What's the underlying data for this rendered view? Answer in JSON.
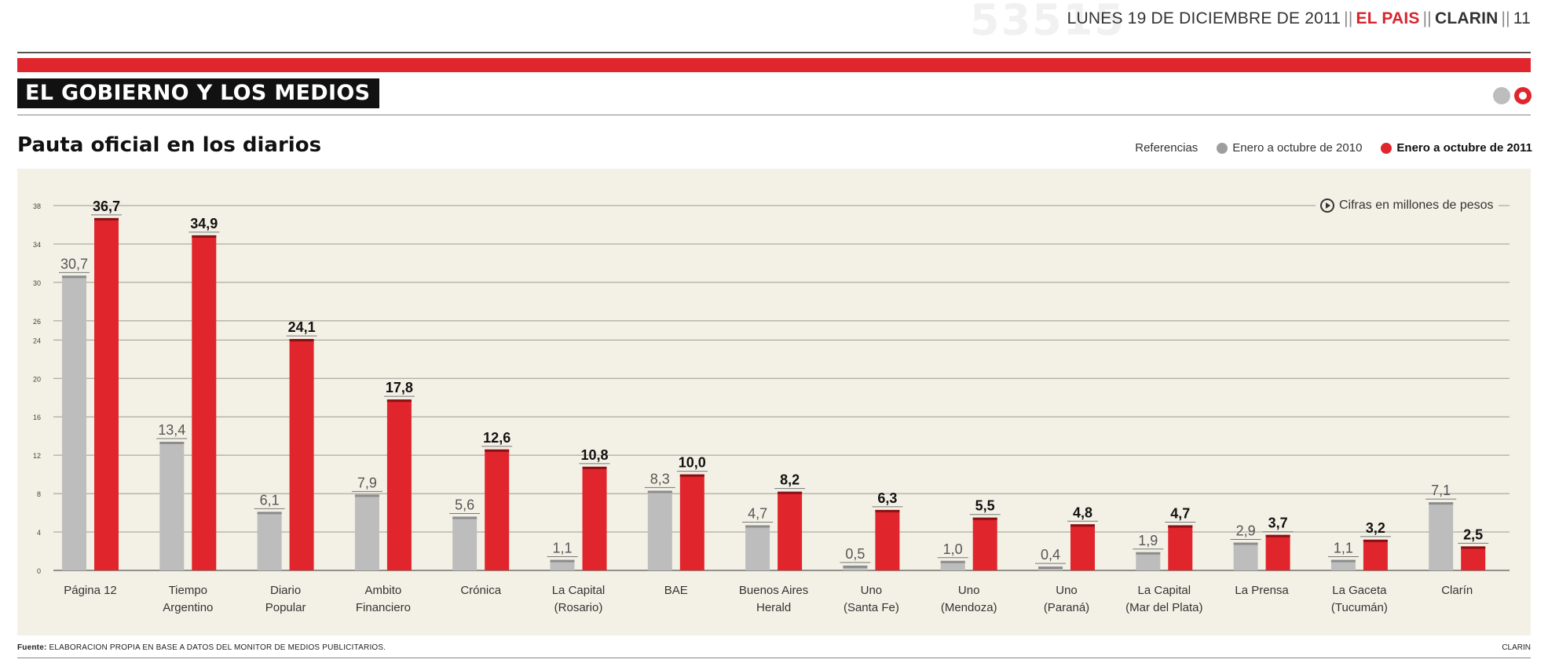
{
  "header": {
    "watermark": "53515",
    "date": "LUNES 19 DE DICIEMBRE DE 2011",
    "section_name": "EL PAIS",
    "newspaper": "CLARIN",
    "page_number": "11"
  },
  "section_title": "EL GOBIERNO Y LOS MEDIOS",
  "colors": {
    "series_2010": "#bdbdbd",
    "series_2011": "#e0262c",
    "panel_bg": "#f3f1e6",
    "section_bg": "#111111"
  },
  "legend": {
    "title": "Referencias",
    "items": [
      "Enero a octubre de 2010",
      "Enero a octubre de 2011"
    ]
  },
  "note": "Cifras en millones de pesos",
  "footer": {
    "source_label": "Fuente:",
    "source_text": "ELABORACION PROPIA EN BASE A DATOS DEL MONITOR DE MEDIOS PUBLICITARIOS.",
    "credit": "CLARIN"
  },
  "chart_data": {
    "type": "bar",
    "title": "Pauta oficial en los diarios",
    "xlabel": "",
    "ylabel": "",
    "ylim": [
      0,
      38
    ],
    "yticks": [
      0,
      4,
      8,
      12,
      16,
      20,
      24,
      26,
      30,
      34,
      38
    ],
    "grid": true,
    "legend_position": "top-right",
    "categories": [
      [
        "Página 12"
      ],
      [
        "Tiempo",
        "Argentino"
      ],
      [
        "Diario",
        "Popular"
      ],
      [
        "Ambito",
        "Financiero"
      ],
      [
        "Crónica"
      ],
      [
        "La Capital",
        "(Rosario)"
      ],
      [
        "BAE"
      ],
      [
        "Buenos Aires",
        "Herald"
      ],
      [
        "Uno",
        "(Santa Fe)"
      ],
      [
        "Uno",
        "(Mendoza)"
      ],
      [
        "Uno",
        "(Paraná)"
      ],
      [
        "La Capital",
        "(Mar del Plata)"
      ],
      [
        "La Prensa"
      ],
      [
        "La Gaceta",
        "(Tucumán)"
      ],
      [
        "Clarín"
      ]
    ],
    "series": [
      {
        "name": "Enero a octubre de 2010",
        "values": [
          30.7,
          13.4,
          6.1,
          7.9,
          5.6,
          1.1,
          8.3,
          4.7,
          0.5,
          1.0,
          0.4,
          1.9,
          2.9,
          1.1,
          7.1
        ],
        "labels": [
          "30,7",
          "13,4",
          "6,1",
          "7,9",
          "5,6",
          "1,1",
          "8,3",
          "4,7",
          "0,5",
          "1,0",
          "0,4",
          "1,9",
          "2,9",
          "1,1",
          "7,1"
        ]
      },
      {
        "name": "Enero a octubre de 2011",
        "values": [
          36.7,
          34.9,
          24.1,
          17.8,
          12.6,
          10.8,
          10.0,
          8.2,
          6.3,
          5.5,
          4.8,
          4.7,
          3.7,
          3.2,
          2.5
        ],
        "labels": [
          "36,7",
          "34,9",
          "24,1",
          "17,8",
          "12,6",
          "10,8",
          "10,0",
          "8,2",
          "6,3",
          "5,5",
          "4,8",
          "4,7",
          "3,7",
          "3,2",
          "2,5"
        ]
      }
    ]
  }
}
